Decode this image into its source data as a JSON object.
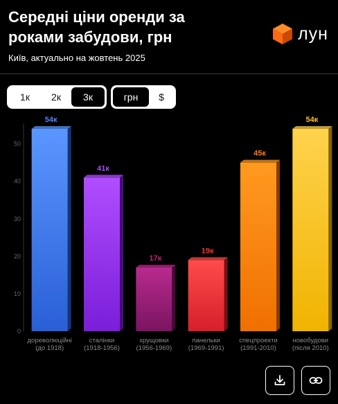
{
  "header": {
    "title": "Середні ціни оренди за роками забудови, грн",
    "subtitle": "Київ, актуально на жовтень 2025",
    "logo_text": "лун",
    "logo_color": "#ff6a13"
  },
  "controls": {
    "rooms": [
      {
        "label": "1к",
        "active": false
      },
      {
        "label": "2к",
        "active": false
      },
      {
        "label": "3к",
        "active": true
      }
    ],
    "currency": [
      {
        "label": "грн",
        "active": true
      },
      {
        "label": "$",
        "active": false
      }
    ]
  },
  "actions": {
    "download_icon": "download-icon",
    "link_icon": "link-icon"
  },
  "chart_data": {
    "type": "bar",
    "categories": [
      {
        "line1": "дореволюційні",
        "line2": "(до 1918)"
      },
      {
        "line1": "сталінки",
        "line2": "(1918-1956)"
      },
      {
        "line1": "хрущовки",
        "line2": "(1956-1969)"
      },
      {
        "line1": "панельки",
        "line2": "(1969-1991)"
      },
      {
        "line1": "спецпроекти",
        "line2": "(1991-2010)"
      },
      {
        "line1": "новобудови",
        "line2": "(після 2010)"
      }
    ],
    "values": [
      54,
      41,
      17,
      19,
      45,
      54
    ],
    "labels": [
      "54к",
      "41к",
      "17к",
      "19к",
      "45к",
      "54к"
    ],
    "yticks": [
      0,
      10,
      20,
      30,
      40,
      50
    ],
    "ylim": [
      0,
      54
    ],
    "grid": false,
    "colors": [
      {
        "top": "#5b96ff",
        "bottom": "#2a5fd6",
        "label": "#4f86ff"
      },
      {
        "top": "#b04dff",
        "bottom": "#7a1ed8",
        "label": "#a14dff"
      },
      {
        "top": "#b82a8e",
        "bottom": "#7a1460",
        "label": "#c0207f"
      },
      {
        "top": "#ff4b4b",
        "bottom": "#d61f2a",
        "label": "#ff3030"
      },
      {
        "top": "#ff9a1f",
        "bottom": "#f07000",
        "label": "#ff7a1a"
      },
      {
        "top": "#ffd24d",
        "bottom": "#f0b400",
        "label": "#ffc21a"
      }
    ]
  }
}
